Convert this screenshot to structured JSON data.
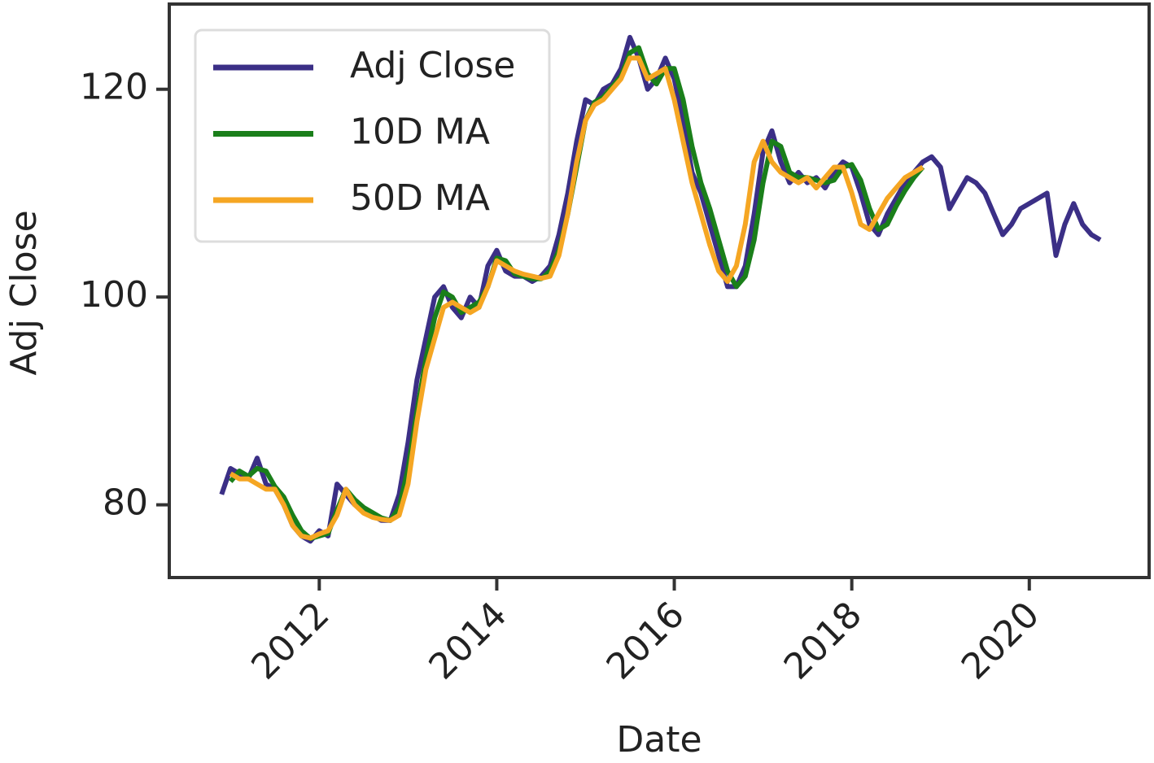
{
  "chart_data": {
    "type": "line",
    "xlabel": "Date",
    "ylabel": "Adj Close",
    "x": [
      2010.9,
      2011.0,
      2011.1,
      2011.2,
      2011.3,
      2011.4,
      2011.5,
      2011.6,
      2011.7,
      2011.8,
      2011.9,
      2012.0,
      2012.1,
      2012.2,
      2012.3,
      2012.4,
      2012.5,
      2012.6,
      2012.7,
      2012.8,
      2012.9,
      2013.0,
      2013.1,
      2013.2,
      2013.3,
      2013.4,
      2013.5,
      2013.6,
      2013.7,
      2013.8,
      2013.9,
      2014.0,
      2014.1,
      2014.2,
      2014.3,
      2014.4,
      2014.5,
      2014.6,
      2014.7,
      2014.8,
      2014.9,
      2015.0,
      2015.1,
      2015.2,
      2015.3,
      2015.4,
      2015.5,
      2015.6,
      2015.7,
      2015.8,
      2015.9,
      2016.0,
      2016.1,
      2016.2,
      2016.3,
      2016.4,
      2016.5,
      2016.6,
      2016.7,
      2016.8,
      2016.9,
      2017.0,
      2017.1,
      2017.2,
      2017.3,
      2017.4,
      2017.5,
      2017.6,
      2017.7,
      2017.8,
      2017.9,
      2018.0,
      2018.1,
      2018.2,
      2018.3,
      2018.4,
      2018.5,
      2018.6,
      2018.7,
      2018.8,
      2018.9,
      2019.0,
      2019.1,
      2019.2,
      2019.3,
      2019.4,
      2019.5,
      2019.6,
      2019.7,
      2019.8,
      2019.9,
      2020.0,
      2020.1,
      2020.2,
      2020.3,
      2020.4,
      2020.5,
      2020.6,
      2020.7,
      2020.8
    ],
    "series": [
      {
        "name": "Adj Close",
        "color": "#3b2f86",
        "values": [
          81,
          83.5,
          83,
          82.5,
          84.5,
          82,
          81.5,
          80,
          78,
          77,
          76.5,
          77.5,
          77,
          82,
          81,
          80,
          79.5,
          79,
          78.5,
          78.5,
          81,
          86,
          92,
          96,
          100,
          101,
          99,
          98,
          100,
          99,
          103,
          104.5,
          102.5,
          102,
          102,
          101.5,
          102,
          103,
          106,
          110,
          115,
          119,
          118.5,
          120,
          120.5,
          122,
          125,
          123,
          120,
          121,
          123,
          121,
          117,
          112,
          110,
          107,
          104,
          101,
          101,
          103,
          108,
          114,
          116,
          113,
          111,
          112,
          111,
          111.5,
          110.5,
          112,
          113,
          112.5,
          110,
          107,
          106,
          108,
          109.5,
          111,
          112,
          113,
          113.5,
          112.5,
          108.5,
          110,
          111.5,
          111,
          110,
          108,
          106,
          107,
          108.5,
          109,
          109.5,
          110,
          104,
          107,
          109,
          107,
          106,
          105.5
        ]
      },
      {
        "name": "10D MA",
        "color": "#1a7f1a",
        "values": [
          null,
          82.25,
          83.25,
          82.75,
          83.5,
          83.25,
          81.75,
          80.75,
          79,
          77.5,
          76.75,
          77,
          77.25,
          79.5,
          81.5,
          80.5,
          79.75,
          79.25,
          78.75,
          78.5,
          79.75,
          83.5,
          89,
          94,
          98,
          100.5,
          100,
          98.5,
          99,
          99.5,
          101,
          103.75,
          103.5,
          102.25,
          102,
          101.75,
          101.75,
          102.5,
          104.5,
          108,
          112.5,
          117,
          118.75,
          119.25,
          120.25,
          121.25,
          123.5,
          124,
          121.5,
          120.5,
          122,
          122,
          119,
          114.5,
          111,
          108.5,
          105.5,
          102.5,
          101,
          102,
          105.5,
          111,
          115,
          114.5,
          112,
          111.5,
          111.5,
          111.25,
          111,
          111.25,
          112.5,
          112.75,
          111.25,
          108.5,
          106.5,
          107,
          108.75,
          110.25,
          111.5,
          112.5,
          null,
          null,
          null,
          null,
          null,
          null,
          null,
          null,
          null,
          null,
          null,
          null,
          null,
          null,
          null,
          null,
          null,
          null,
          null,
          null
        ]
      },
      {
        "name": "50D MA",
        "color": "#f5a623",
        "values": [
          null,
          83,
          82.5,
          82.5,
          82,
          81.5,
          81.5,
          80,
          78,
          77,
          76.8,
          77.2,
          77.5,
          79,
          81.5,
          80,
          79.2,
          78.8,
          78.6,
          78.5,
          79,
          82,
          88,
          93,
          96,
          99,
          99.5,
          99,
          98.5,
          99,
          101,
          103.5,
          103,
          102.5,
          102.2,
          102,
          101.8,
          102,
          104,
          108,
          113,
          117,
          118.5,
          119,
          120,
          121,
          123,
          123,
          121,
          121.5,
          122,
          119,
          115,
          111,
          108,
          105,
          102.5,
          101.5,
          103,
          107,
          113,
          115,
          113,
          112,
          111.5,
          111,
          111.5,
          110.5,
          111.5,
          112.5,
          112.5,
          110,
          107,
          106.5,
          108,
          109.5,
          110.5,
          111.5,
          112,
          112.5,
          null,
          null,
          null,
          null,
          null,
          null,
          null,
          null,
          null,
          null,
          null,
          null,
          null,
          null,
          null,
          null,
          null,
          null,
          null,
          null
        ]
      }
    ],
    "xlim": [
      2010.31,
      2021.35
    ],
    "xticks": [
      2012,
      2014,
      2016,
      2018,
      2020
    ],
    "ylim": [
      73.0,
      128.2
    ],
    "yticks": [
      80,
      100,
      120
    ],
    "legend": "upper left",
    "grid": false
  }
}
